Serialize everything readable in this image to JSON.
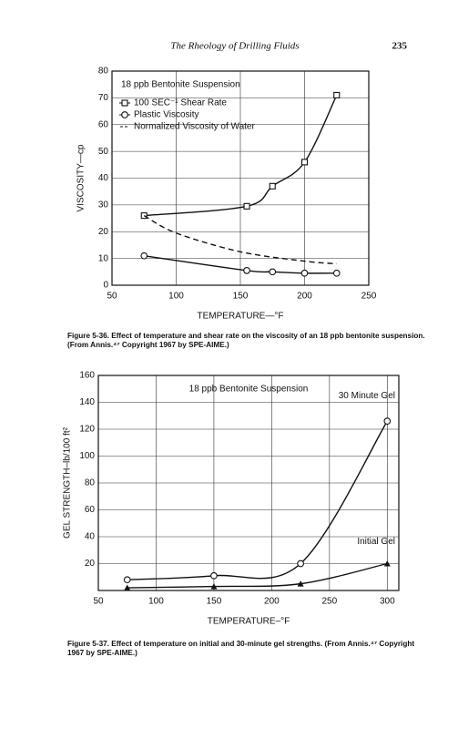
{
  "header": {
    "title": "The Rheology of Drilling Fluids",
    "page": "235"
  },
  "chart_data": [
    {
      "type": "line",
      "annotation": "18 ppb Bentonite Suspension",
      "xlabel": "TEMPERATURE—°F",
      "ylabel": "VISCOSITY—cp",
      "xlim": [
        50,
        250
      ],
      "xticks": [
        50,
        100,
        150,
        200,
        250
      ],
      "ylim": [
        0,
        80
      ],
      "yticks": [
        0,
        10,
        20,
        30,
        40,
        50,
        60,
        70,
        80
      ],
      "grid": true,
      "legend": "upper left",
      "series": [
        {
          "name": "100 SEC⁻¹ Shear Rate",
          "color": "#111",
          "marker": "square",
          "dash": false,
          "x": [
            75,
            155,
            175,
            200,
            225
          ],
          "values": [
            26,
            29.5,
            37,
            46,
            71
          ]
        },
        {
          "name": "Plastic Viscosity",
          "color": "#111",
          "marker": "circle",
          "dash": false,
          "x": [
            75,
            155,
            175,
            200,
            225
          ],
          "values": [
            11,
            5.5,
            5,
            4.5,
            4.5
          ]
        },
        {
          "name": "Normalized Viscosity of Water",
          "color": "#111",
          "marker": "none",
          "dash": true,
          "x": [
            75,
            100,
            150,
            200,
            225
          ],
          "values": [
            26,
            19.5,
            12.5,
            9,
            8
          ]
        }
      ],
      "caption": "Figure 5-36. Effect of temperature and shear rate on the viscosity of an 18 ppb bentonite suspension. (From Annis.⁴⁷ Copyright 1967 by SPE-AIME.)"
    },
    {
      "type": "line",
      "annotation": "18 ppb Bentonite Suspension",
      "xlabel": "TEMPERATURE–°F",
      "ylabel": "GEL STRENGTH–lb/100 ft²",
      "xlim": [
        50,
        310
      ],
      "xticks": [
        50,
        100,
        150,
        200,
        250,
        300
      ],
      "ylim": [
        0,
        160
      ],
      "yticks": [
        20,
        40,
        60,
        80,
        100,
        120,
        140,
        160
      ],
      "grid": true,
      "legend": "inline",
      "series": [
        {
          "name": "30 Minute Gel",
          "color": "#111",
          "marker": "circle",
          "dash": false,
          "x": [
            75,
            150,
            225,
            300
          ],
          "values": [
            8,
            11,
            20,
            126
          ]
        },
        {
          "name": "Initial Gel",
          "color": "#111",
          "marker": "triangle",
          "dash": false,
          "x": [
            75,
            150,
            225,
            300
          ],
          "values": [
            2,
            3,
            5,
            20
          ]
        }
      ],
      "caption": "Figure 5-37. Effect of temperature on initial and 30-minute gel strengths. (From Annis.⁴⁷ Copyright 1967 by SPE-AIME.)"
    }
  ]
}
